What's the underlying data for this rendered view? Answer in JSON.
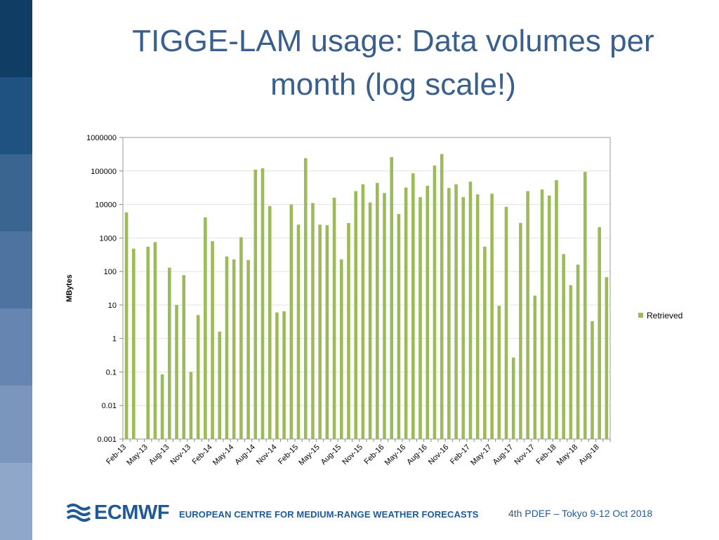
{
  "slide": {
    "title_line1": "TIGGE-LAM usage: Data volumes per",
    "title_line2": "month (log scale!)"
  },
  "colors": {
    "bar": "#9bbb59",
    "title": "#3a5f8c",
    "footer": "#1f5a96",
    "sidebar": [
      "#0f3d63",
      "#1f5280",
      "#3a6591",
      "#4f73a0",
      "#6685b0",
      "#7a96bd",
      "#8fa8c9"
    ]
  },
  "footer": {
    "logo_text": "ECMWF",
    "org_name": "EUROPEAN CENTRE FOR MEDIUM-RANGE WEATHER FORECASTS",
    "event": "4th PDEF – Tokyo 9-12 Oct 2018"
  },
  "chart_data": {
    "type": "bar",
    "title": "",
    "xlabel": "",
    "ylabel": "MBytes",
    "yscale": "log",
    "ylim": [
      0.001,
      1000000
    ],
    "ytick_labels": [
      "1000000",
      "100000",
      "10000",
      "1000",
      "100",
      "10",
      "1",
      "0.1",
      "0.01",
      "0.001"
    ],
    "ytick_values": [
      1000000,
      100000,
      10000,
      1000,
      100,
      10,
      1,
      0.1,
      0.01,
      0.001
    ],
    "legend": {
      "position": "right",
      "entries": [
        "Retrieved"
      ]
    },
    "grid": true,
    "categories": [
      "Feb-13",
      "Mar-13",
      "Apr-13",
      "May-13",
      "Jun-13",
      "Jul-13",
      "Aug-13",
      "Sep-13",
      "Oct-13",
      "Nov-13",
      "Dec-13",
      "Jan-14",
      "Feb-14",
      "Mar-14",
      "Apr-14",
      "May-14",
      "Jun-14",
      "Jul-14",
      "Aug-14",
      "Sep-14",
      "Oct-14",
      "Nov-14",
      "Dec-14",
      "Jan-15",
      "Feb-15",
      "Mar-15",
      "Apr-15",
      "May-15",
      "Jun-15",
      "Jul-15",
      "Aug-15",
      "Sep-15",
      "Oct-15",
      "Nov-15",
      "Dec-15",
      "Jan-16",
      "Feb-16",
      "Mar-16",
      "Apr-16",
      "May-16",
      "Jun-16",
      "Jul-16",
      "Aug-16",
      "Sep-16",
      "Oct-16",
      "Nov-16",
      "Dec-16",
      "Jan-17",
      "Feb-17",
      "Mar-17",
      "Apr-17",
      "May-17",
      "Jun-17",
      "Jul-17",
      "Aug-17",
      "Sep-17",
      "Oct-17",
      "Nov-17",
      "Dec-17",
      "Jan-18",
      "Feb-18",
      "Mar-18",
      "Apr-18",
      "May-18",
      "Jun-18",
      "Jul-18",
      "Aug-18",
      "Sep-18"
    ],
    "xtick_labels": [
      "Feb-13",
      "May-13",
      "Aug-13",
      "Nov-13",
      "Feb-14",
      "May-14",
      "Aug-14",
      "Nov-14",
      "Feb-15",
      "May-15",
      "Aug-15",
      "Nov-15",
      "Feb-16",
      "May-16",
      "Aug-16",
      "Nov-16",
      "Feb-17",
      "May-17",
      "Aug-17",
      "Nov-17",
      "Feb-18",
      "May-18",
      "Aug-18"
    ],
    "series": [
      {
        "name": "Retrieved",
        "values": [
          5800,
          480,
          null,
          550,
          750,
          0.085,
          130,
          10,
          78,
          0.1,
          5,
          4100,
          800,
          1.6,
          280,
          230,
          1050,
          220,
          110000,
          120000,
          9000,
          6,
          6.5,
          10000,
          2500,
          240000,
          11000,
          2500,
          2400,
          16000,
          230,
          2800,
          25000,
          40000,
          11500,
          44000,
          22000,
          260000,
          5200,
          32000,
          85000,
          16500,
          36000,
          145000,
          320000,
          31000,
          40000,
          16500,
          48000,
          20000,
          550,
          21000,
          9.5,
          8500,
          0.27,
          2800,
          25000,
          19,
          28000,
          18500,
          53000,
          330,
          39,
          160,
          94000,
          3.3,
          2100,
          68
        ]
      }
    ]
  }
}
